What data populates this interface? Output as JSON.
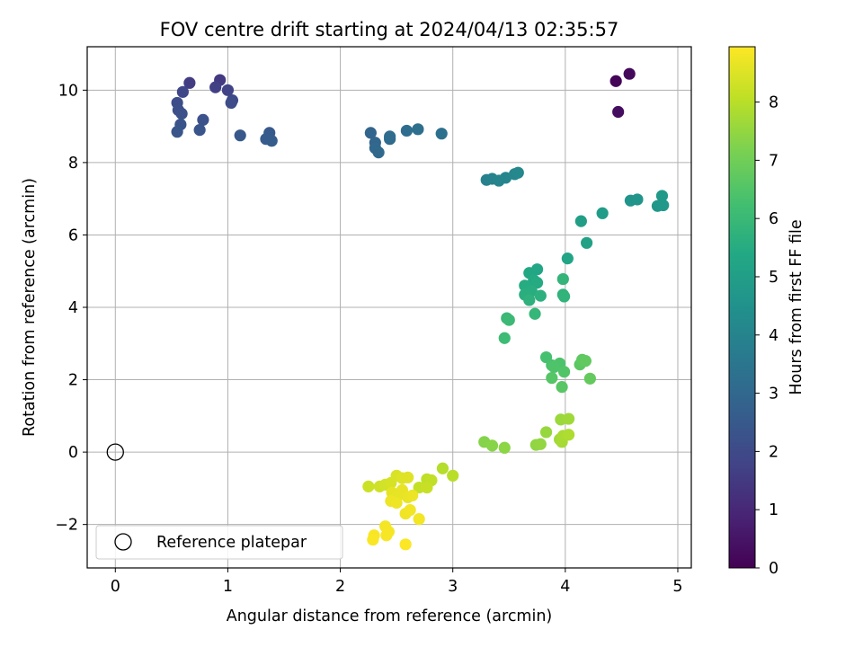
{
  "chart_data": {
    "type": "scatter",
    "title": "FOV centre drift starting at 2024/04/13 02:35:57",
    "xlabel": "Angular distance from reference (arcmin)",
    "ylabel": "Rotation from reference (arcmin)",
    "xlim": [
      -0.25,
      5.12
    ],
    "ylim": [
      -3.2,
      11.2
    ],
    "xticks": [
      0,
      1,
      2,
      3,
      4,
      5
    ],
    "yticks": [
      -2,
      0,
      2,
      4,
      6,
      8,
      10
    ],
    "grid": true,
    "legend": {
      "placement": "lower-left",
      "entries": [
        "Reference platepar"
      ]
    },
    "reference_point": {
      "x": 0,
      "y": 0,
      "label": "Reference platepar"
    },
    "colorbar": {
      "label": "Hours from first FF file",
      "colormap": "viridis",
      "range": [
        0,
        8.95
      ],
      "ticks": [
        0,
        1,
        2,
        3,
        4,
        5,
        6,
        7,
        8
      ]
    },
    "points_xyc": [
      [
        4.45,
        10.25,
        0.1
      ],
      [
        4.57,
        10.45,
        0.2
      ],
      [
        4.47,
        9.4,
        0.3
      ],
      [
        0.93,
        10.28,
        1.5
      ],
      [
        0.66,
        10.2,
        1.6
      ],
      [
        0.89,
        10.08,
        1.7
      ],
      [
        1.0,
        10.0,
        1.8
      ],
      [
        0.6,
        9.95,
        1.9
      ],
      [
        1.04,
        9.72,
        2.0
      ],
      [
        1.03,
        9.65,
        2.05
      ],
      [
        0.55,
        9.65,
        2.1
      ],
      [
        0.56,
        9.45,
        2.15
      ],
      [
        0.59,
        9.35,
        2.2
      ],
      [
        0.78,
        9.18,
        2.25
      ],
      [
        0.58,
        9.05,
        2.3
      ],
      [
        0.75,
        8.9,
        2.35
      ],
      [
        0.55,
        8.85,
        2.4
      ],
      [
        1.11,
        8.75,
        2.45
      ],
      [
        1.37,
        8.82,
        2.5
      ],
      [
        1.34,
        8.65,
        2.55
      ],
      [
        1.39,
        8.6,
        2.6
      ],
      [
        2.27,
        8.82,
        2.9
      ],
      [
        2.31,
        8.55,
        2.95
      ],
      [
        2.31,
        8.4,
        3.0
      ],
      [
        2.34,
        8.28,
        3.05
      ],
      [
        2.44,
        8.65,
        3.1
      ],
      [
        2.44,
        8.72,
        3.15
      ],
      [
        2.59,
        8.88,
        3.2
      ],
      [
        2.69,
        8.92,
        3.25
      ],
      [
        2.9,
        8.8,
        3.3
      ],
      [
        3.3,
        7.52,
        3.9
      ],
      [
        3.35,
        7.55,
        3.95
      ],
      [
        3.41,
        7.5,
        4.0
      ],
      [
        3.47,
        7.58,
        4.05
      ],
      [
        3.55,
        7.68,
        4.1
      ],
      [
        3.58,
        7.72,
        4.15
      ],
      [
        4.58,
        6.95,
        4.6
      ],
      [
        4.64,
        6.98,
        4.65
      ],
      [
        4.82,
        6.8,
        4.7
      ],
      [
        4.87,
        6.82,
        4.75
      ],
      [
        4.86,
        7.08,
        4.8
      ],
      [
        4.33,
        6.6,
        4.9
      ],
      [
        4.14,
        6.38,
        5.0
      ],
      [
        4.19,
        5.78,
        5.1
      ],
      [
        4.02,
        5.35,
        5.2
      ],
      [
        3.75,
        5.05,
        5.3
      ],
      [
        3.68,
        4.95,
        5.35
      ],
      [
        3.72,
        4.75,
        5.4
      ],
      [
        3.75,
        4.68,
        5.45
      ],
      [
        3.64,
        4.6,
        5.5
      ],
      [
        3.7,
        4.45,
        5.55
      ],
      [
        3.64,
        4.35,
        5.6
      ],
      [
        3.78,
        4.32,
        5.65
      ],
      [
        3.68,
        4.2,
        5.7
      ],
      [
        3.98,
        4.35,
        5.75
      ],
      [
        3.99,
        4.3,
        5.8
      ],
      [
        3.98,
        4.78,
        5.85
      ],
      [
        3.73,
        3.82,
        5.9
      ],
      [
        3.48,
        3.7,
        6.0
      ],
      [
        3.5,
        3.65,
        6.05
      ],
      [
        3.46,
        3.15,
        6.1
      ],
      [
        3.83,
        2.62,
        6.3
      ],
      [
        3.88,
        2.4,
        6.35
      ],
      [
        3.95,
        2.45,
        6.4
      ],
      [
        3.9,
        2.35,
        6.45
      ],
      [
        3.99,
        2.22,
        6.5
      ],
      [
        3.88,
        2.05,
        6.55
      ],
      [
        3.97,
        1.8,
        6.6
      ],
      [
        4.13,
        2.42,
        6.65
      ],
      [
        4.15,
        2.55,
        6.7
      ],
      [
        4.18,
        2.52,
        6.75
      ],
      [
        4.22,
        2.03,
        6.8
      ],
      [
        3.28,
        0.28,
        7.3
      ],
      [
        3.35,
        0.18,
        7.35
      ],
      [
        3.46,
        0.12,
        7.4
      ],
      [
        3.74,
        0.2,
        7.45
      ],
      [
        3.78,
        0.22,
        7.5
      ],
      [
        3.83,
        0.55,
        7.55
      ],
      [
        3.96,
        0.9,
        7.6
      ],
      [
        4.03,
        0.92,
        7.65
      ],
      [
        3.95,
        0.35,
        7.7
      ],
      [
        3.97,
        0.28,
        7.75
      ],
      [
        3.98,
        0.45,
        7.8
      ],
      [
        4.03,
        0.48,
        7.85
      ],
      [
        2.91,
        -0.45,
        7.95
      ],
      [
        3.0,
        -0.65,
        8.0
      ],
      [
        2.77,
        -0.75,
        8.05
      ],
      [
        2.81,
        -0.78,
        8.1
      ],
      [
        2.7,
        -0.98,
        8.15
      ],
      [
        2.77,
        -0.98,
        8.2
      ],
      [
        2.25,
        -0.95,
        8.25
      ],
      [
        2.35,
        -0.95,
        8.3
      ],
      [
        2.4,
        -0.9,
        8.35
      ],
      [
        2.45,
        -0.85,
        8.4
      ],
      [
        2.5,
        -0.65,
        8.45
      ],
      [
        2.55,
        -0.72,
        8.5
      ],
      [
        2.6,
        -0.7,
        8.55
      ],
      [
        2.46,
        -1.12,
        8.6
      ],
      [
        2.5,
        -1.25,
        8.62
      ],
      [
        2.55,
        -1.05,
        8.65
      ],
      [
        2.6,
        -1.25,
        8.67
      ],
      [
        2.64,
        -1.2,
        8.7
      ],
      [
        2.45,
        -1.35,
        8.72
      ],
      [
        2.5,
        -1.4,
        8.74
      ],
      [
        2.58,
        -1.7,
        8.76
      ],
      [
        2.62,
        -1.6,
        8.78
      ],
      [
        2.7,
        -1.85,
        8.8
      ],
      [
        2.4,
        -2.05,
        8.82
      ],
      [
        2.43,
        -2.2,
        8.84
      ],
      [
        2.41,
        -2.3,
        8.86
      ],
      [
        2.3,
        -2.3,
        8.88
      ],
      [
        2.29,
        -2.42,
        8.9
      ],
      [
        2.58,
        -2.55,
        8.92
      ]
    ]
  }
}
